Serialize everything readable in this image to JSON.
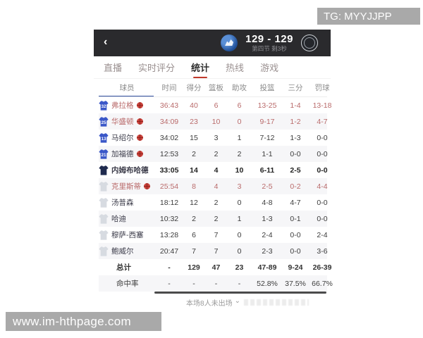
{
  "watermarks": {
    "top_right": "TG: MYYJJPP",
    "bottom_left": "www.im-hthpage.com"
  },
  "header": {
    "back_icon": "‹",
    "score": "129 - 129",
    "status": "第四节 剩3秒",
    "home_logo": "mavericks-logo",
    "away_logo": "opponent-logo"
  },
  "tabs": [
    {
      "label": "直播",
      "active": false
    },
    {
      "label": "实时评分",
      "active": false
    },
    {
      "label": "统计",
      "active": true
    },
    {
      "label": "热线",
      "active": false
    },
    {
      "label": "游戏",
      "active": false
    }
  ],
  "table": {
    "headers": [
      "球员",
      "时间",
      "得分",
      "篮板",
      "助攻",
      "投篮",
      "三分",
      "罚球"
    ],
    "players": [
      {
        "jersey_no": "32",
        "jersey_color": "blue",
        "name": "弗拉格",
        "badge": true,
        "style": "red",
        "time": "36:43",
        "pts": "40",
        "reb": "6",
        "ast": "6",
        "fg": "13-25",
        "tp": "1-4",
        "ft": "13-18"
      },
      {
        "jersey_no": "25",
        "jersey_color": "blue",
        "name": "华盛顿",
        "badge": true,
        "style": "red",
        "time": "34:09",
        "pts": "23",
        "reb": "10",
        "ast": "0",
        "fg": "9-17",
        "tp": "1-2",
        "ft": "4-7"
      },
      {
        "jersey_no": "13",
        "jersey_color": "blue",
        "name": "马绍尔",
        "badge": true,
        "style": "normal",
        "time": "34:02",
        "pts": "15",
        "reb": "3",
        "ast": "1",
        "fg": "7-12",
        "tp": "1-3",
        "ft": "0-0"
      },
      {
        "jersey_no": "21",
        "jersey_color": "blue",
        "name": "加福德",
        "badge": true,
        "style": "normal",
        "time": "12:53",
        "pts": "2",
        "reb": "2",
        "ast": "2",
        "fg": "1-1",
        "tp": "0-0",
        "ft": "0-0"
      },
      {
        "jersey_no": "",
        "jersey_color": "navy",
        "name": "内姆布哈德",
        "badge": false,
        "style": "bold",
        "time": "33:05",
        "pts": "14",
        "reb": "4",
        "ast": "10",
        "fg": "6-11",
        "tp": "2-5",
        "ft": "0-0"
      },
      {
        "jersey_no": "",
        "jersey_color": "gray",
        "name": "克里斯蒂",
        "badge": true,
        "style": "red",
        "time": "25:54",
        "pts": "8",
        "reb": "4",
        "ast": "3",
        "fg": "2-5",
        "tp": "0-2",
        "ft": "4-4"
      },
      {
        "jersey_no": "",
        "jersey_color": "gray",
        "name": "汤普森",
        "badge": false,
        "style": "normal",
        "time": "18:12",
        "pts": "12",
        "reb": "2",
        "ast": "0",
        "fg": "4-8",
        "tp": "4-7",
        "ft": "0-0"
      },
      {
        "jersey_no": "",
        "jersey_color": "gray",
        "name": "哈迪",
        "badge": false,
        "style": "normal",
        "time": "10:32",
        "pts": "2",
        "reb": "2",
        "ast": "1",
        "fg": "1-3",
        "tp": "0-1",
        "ft": "0-0"
      },
      {
        "jersey_no": "",
        "jersey_color": "gray",
        "name": "穆萨-西塞",
        "badge": false,
        "style": "normal",
        "time": "13:28",
        "pts": "6",
        "reb": "7",
        "ast": "0",
        "fg": "2-4",
        "tp": "0-0",
        "ft": "2-4"
      },
      {
        "jersey_no": "",
        "jersey_color": "gray",
        "name": "鲍威尔",
        "badge": false,
        "style": "normal",
        "time": "20:47",
        "pts": "7",
        "reb": "7",
        "ast": "0",
        "fg": "2-3",
        "tp": "0-0",
        "ft": "3-6"
      }
    ],
    "totals": {
      "label": "总计",
      "time": "-",
      "pts": "129",
      "reb": "47",
      "ast": "23",
      "fg": "47-89",
      "tp": "9-24",
      "ft": "26-39"
    },
    "percentages": {
      "label": "命中率",
      "time": "-",
      "pts": "-",
      "reb": "-",
      "ast": "-",
      "fg": "52.8%",
      "tp": "37.5%",
      "ft": "66.7%"
    }
  },
  "footer": {
    "note": "本场8人未出场",
    "chevron": "⌄"
  },
  "colors": {
    "accent_red": "#c0392b",
    "row_red_text": "#b96a6a",
    "jersey_blue": "#3a57c8",
    "jersey_navy": "#1f2a4e",
    "jersey_gray": "#d7dbe1",
    "badge_red": "#c9413a",
    "player_header_underline": "#2f4d9e",
    "topbar_bg": "#2a2a2d"
  }
}
